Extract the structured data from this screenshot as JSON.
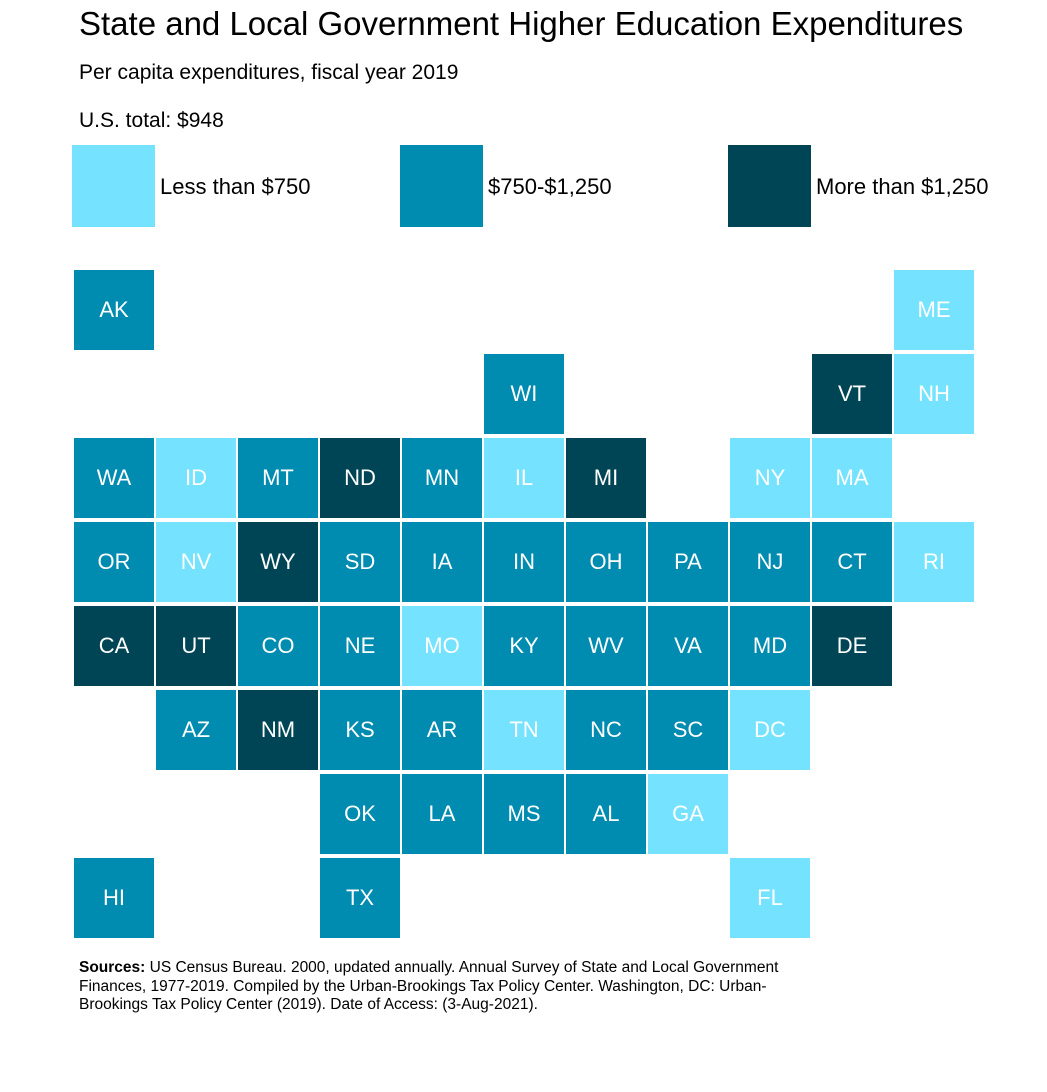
{
  "chart_data": {
    "type": "tile-map",
    "title": "State and Local Government Higher Education Expenditures",
    "subtitle": "Per capita expenditures, fiscal year 2019",
    "us_total": "U.S. total: $948",
    "legend": [
      {
        "label": "Less than $750",
        "color": "#75e3ff"
      },
      {
        "label": "$750-$1,250",
        "color": "#008bb0"
      },
      {
        "label": "More than $1,250",
        "color": "#004555"
      }
    ],
    "states": [
      {
        "id": "AK",
        "cat": 1
      },
      {
        "id": "ME",
        "cat": 0
      },
      {
        "id": "WI",
        "cat": 1
      },
      {
        "id": "VT",
        "cat": 2
      },
      {
        "id": "NH",
        "cat": 0
      },
      {
        "id": "WA",
        "cat": 1
      },
      {
        "id": "ID",
        "cat": 0
      },
      {
        "id": "MT",
        "cat": 1
      },
      {
        "id": "ND",
        "cat": 2
      },
      {
        "id": "MN",
        "cat": 1
      },
      {
        "id": "IL",
        "cat": 0
      },
      {
        "id": "MI",
        "cat": 2
      },
      {
        "id": "NY",
        "cat": 0
      },
      {
        "id": "MA",
        "cat": 0
      },
      {
        "id": "OR",
        "cat": 1
      },
      {
        "id": "NV",
        "cat": 0
      },
      {
        "id": "WY",
        "cat": 2
      },
      {
        "id": "SD",
        "cat": 1
      },
      {
        "id": "IA",
        "cat": 1
      },
      {
        "id": "IN",
        "cat": 1
      },
      {
        "id": "OH",
        "cat": 1
      },
      {
        "id": "PA",
        "cat": 1
      },
      {
        "id": "NJ",
        "cat": 1
      },
      {
        "id": "CT",
        "cat": 1
      },
      {
        "id": "RI",
        "cat": 0
      },
      {
        "id": "CA",
        "cat": 2
      },
      {
        "id": "UT",
        "cat": 2
      },
      {
        "id": "CO",
        "cat": 1
      },
      {
        "id": "NE",
        "cat": 1
      },
      {
        "id": "MO",
        "cat": 0
      },
      {
        "id": "KY",
        "cat": 1
      },
      {
        "id": "WV",
        "cat": 1
      },
      {
        "id": "VA",
        "cat": 1
      },
      {
        "id": "MD",
        "cat": 1
      },
      {
        "id": "DE",
        "cat": 2
      },
      {
        "id": "AZ",
        "cat": 1
      },
      {
        "id": "NM",
        "cat": 2
      },
      {
        "id": "KS",
        "cat": 1
      },
      {
        "id": "AR",
        "cat": 1
      },
      {
        "id": "TN",
        "cat": 0
      },
      {
        "id": "NC",
        "cat": 1
      },
      {
        "id": "SC",
        "cat": 1
      },
      {
        "id": "DC",
        "cat": 0
      },
      {
        "id": "OK",
        "cat": 1
      },
      {
        "id": "LA",
        "cat": 1
      },
      {
        "id": "MS",
        "cat": 1
      },
      {
        "id": "AL",
        "cat": 1
      },
      {
        "id": "GA",
        "cat": 0
      },
      {
        "id": "HI",
        "cat": 1
      },
      {
        "id": "TX",
        "cat": 1
      },
      {
        "id": "FL",
        "cat": 0
      }
    ]
  },
  "sources": {
    "label": "Sources:",
    "text": " US Census Bureau. 2000, updated annually. Annual Survey of State and Local Government Finances, 1977-2019.  Compiled by the Urban-Brookings Tax Policy Center. Washington, DC: Urban-Brookings Tax Policy Center (2019). Date of Access: (3-Aug-2021)."
  }
}
